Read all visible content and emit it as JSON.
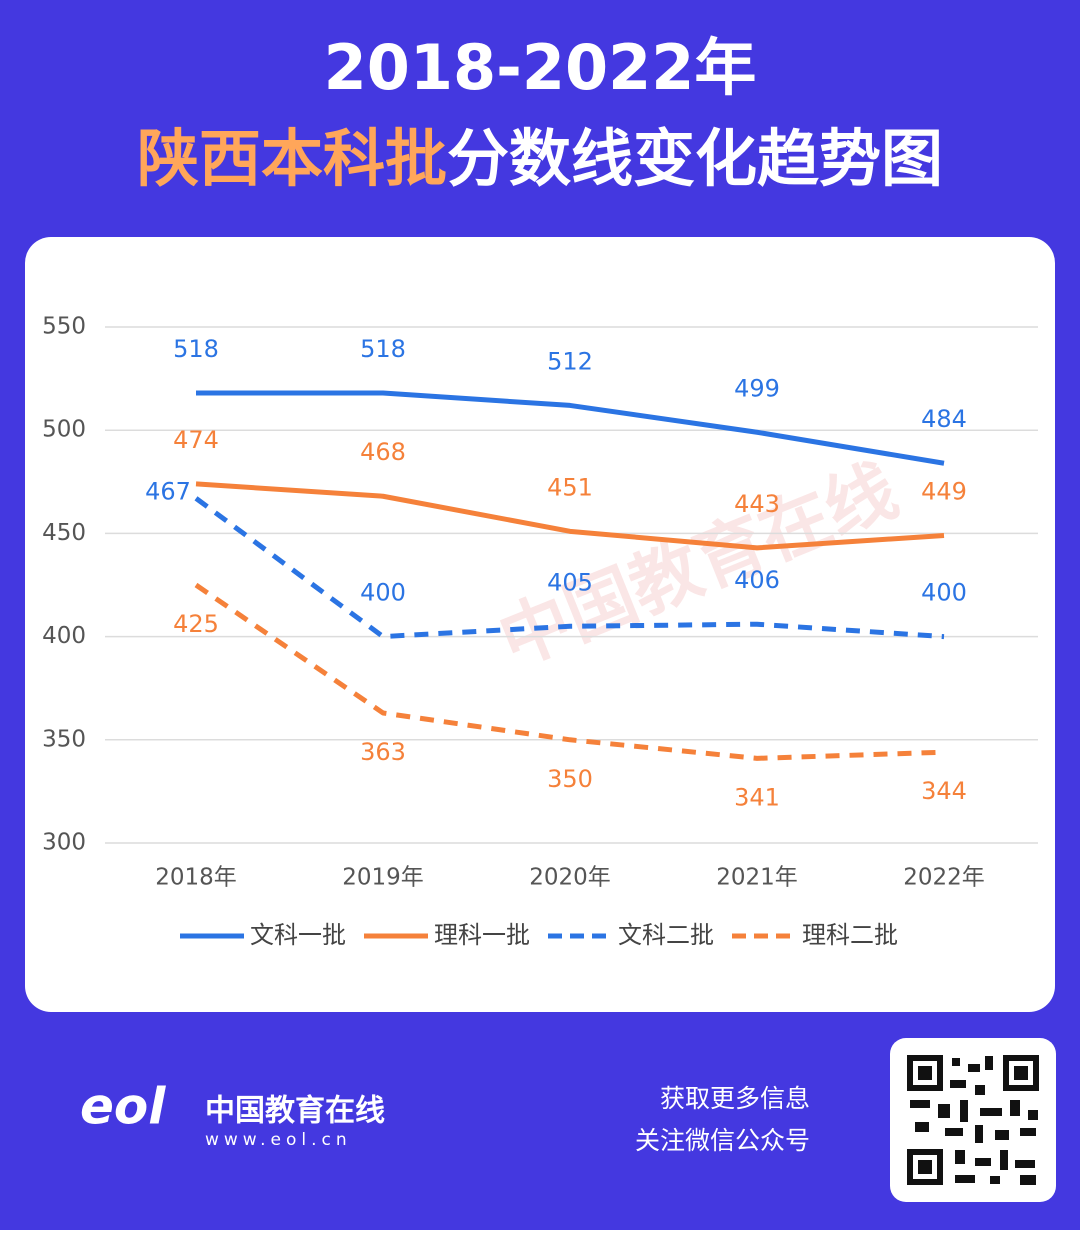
{
  "header": {
    "line1": "2018-2022年",
    "highlight": "陕西本科批",
    "rest": "分数线变化趋势图"
  },
  "chart_data": {
    "type": "line",
    "categories": [
      "2018年",
      "2019年",
      "2020年",
      "2021年",
      "2022年"
    ],
    "ylim": [
      300,
      550
    ],
    "yticks": [
      300,
      350,
      400,
      450,
      500,
      550
    ],
    "grid": true,
    "legend": "bottom",
    "series": [
      {
        "name": "文科一批",
        "color": "#2b74e3",
        "dashed": false,
        "values": [
          518,
          518,
          512,
          499,
          484
        ]
      },
      {
        "name": "理科一批",
        "color": "#f5813a",
        "dashed": false,
        "values": [
          474,
          468,
          451,
          443,
          449
        ]
      },
      {
        "name": "文科二批",
        "color": "#2b74e3",
        "dashed": true,
        "values": [
          467,
          400,
          405,
          406,
          400
        ]
      },
      {
        "name": "理科二批",
        "color": "#f5813a",
        "dashed": true,
        "values": [
          425,
          363,
          350,
          341,
          344
        ]
      }
    ]
  },
  "footer": {
    "brand": "中国教育在线",
    "url": "www.eol.cn",
    "line1": "获取更多信息",
    "line2": "关注微信公众号"
  }
}
